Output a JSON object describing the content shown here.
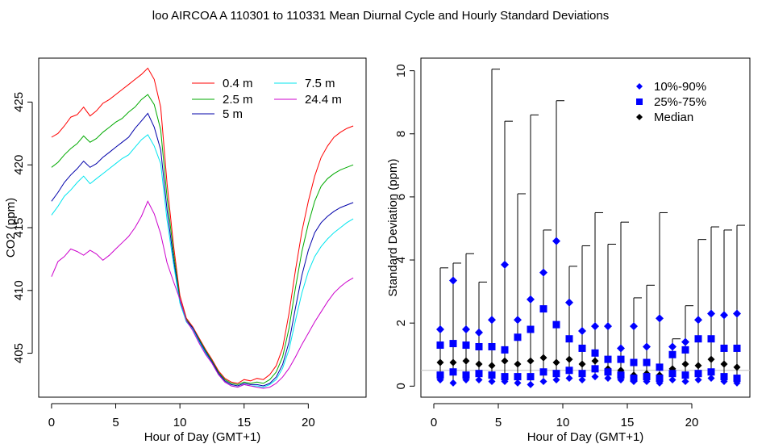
{
  "figure_title": "loo   AIRCOA A   110301 to 110331   Mean Diurnal Cycle and Hourly Standard Deviations",
  "chart_data": [
    {
      "type": "line",
      "xlabel": "Hour of Day (GMT+1)",
      "ylabel": "CO2 (ppm)",
      "xlim": [
        -1,
        24.5
      ],
      "ylim": [
        401.5,
        428.5
      ],
      "xticks": [
        0,
        5,
        10,
        15,
        20
      ],
      "yticks": [
        405,
        410,
        415,
        420,
        425
      ],
      "legend_position": "top-right",
      "series": [
        {
          "name": "0.4 m",
          "color": "#ff0000",
          "x": [
            0,
            0.5,
            1,
            1.5,
            2,
            2.5,
            3,
            3.5,
            4,
            4.5,
            5,
            5.5,
            6,
            6.5,
            7,
            7.5,
            8,
            8.5,
            9,
            9.5,
            10,
            10.5,
            11,
            11.5,
            12,
            12.5,
            13,
            13.5,
            14,
            14.5,
            15,
            15.5,
            16,
            16.5,
            17,
            17.5,
            18,
            18.5,
            19,
            19.5,
            20,
            20.5,
            21,
            21.5,
            22,
            22.5,
            23,
            23.5
          ],
          "y": [
            422.2,
            422.5,
            423.1,
            423.8,
            424.0,
            424.6,
            423.9,
            424.3,
            424.9,
            425.2,
            425.6,
            426.0,
            426.4,
            426.8,
            427.2,
            427.7,
            426.8,
            424.6,
            418.5,
            413.6,
            409.6,
            407.8,
            407.1,
            406.2,
            405.3,
            404.5,
            403.6,
            403.0,
            402.7,
            402.6,
            402.9,
            402.8,
            403.0,
            402.9,
            403.3,
            404.0,
            405.4,
            408.2,
            411.6,
            414.7,
            417.1,
            419.1,
            420.6,
            421.5,
            422.2,
            422.6,
            422.9,
            423.1
          ]
        },
        {
          "name": "2.5 m",
          "color": "#00aa00",
          "x": [
            0,
            0.5,
            1,
            1.5,
            2,
            2.5,
            3,
            3.5,
            4,
            4.5,
            5,
            5.5,
            6,
            6.5,
            7,
            7.5,
            8,
            8.5,
            9,
            9.5,
            10,
            10.5,
            11,
            11.5,
            12,
            12.5,
            13,
            13.5,
            14,
            14.5,
            15,
            15.5,
            16,
            16.5,
            17,
            17.5,
            18,
            18.5,
            19,
            19.5,
            20,
            20.5,
            21,
            21.5,
            22,
            22.5,
            23,
            23.5
          ],
          "y": [
            419.8,
            420.2,
            420.8,
            421.3,
            421.7,
            422.3,
            421.8,
            422.1,
            422.6,
            423.0,
            423.4,
            423.7,
            424.2,
            424.6,
            425.2,
            425.6,
            424.8,
            422.8,
            417.4,
            413.0,
            409.3,
            407.7,
            407.0,
            406.1,
            405.2,
            404.4,
            403.5,
            402.9,
            402.6,
            402.5,
            402.7,
            402.6,
            402.7,
            402.6,
            402.9,
            403.5,
            404.7,
            407.0,
            410.2,
            413.1,
            415.3,
            417.1,
            418.3,
            418.9,
            419.3,
            419.6,
            419.8,
            420.0
          ]
        },
        {
          "name": "5 m",
          "color": "#0000aa",
          "x": [
            0,
            0.5,
            1,
            1.5,
            2,
            2.5,
            3,
            3.5,
            4,
            4.5,
            5,
            5.5,
            6,
            6.5,
            7,
            7.5,
            8,
            8.5,
            9,
            9.5,
            10,
            10.5,
            11,
            11.5,
            12,
            12.5,
            13,
            13.5,
            14,
            14.5,
            15,
            15.5,
            16,
            16.5,
            17,
            17.5,
            18,
            18.5,
            19,
            19.5,
            20,
            20.5,
            21,
            21.5,
            22,
            22.5,
            23,
            23.5
          ],
          "y": [
            417.1,
            417.8,
            418.6,
            419.2,
            419.7,
            420.3,
            419.8,
            420.1,
            420.6,
            421.0,
            421.4,
            421.8,
            422.2,
            422.9,
            423.5,
            424.1,
            423.0,
            421.2,
            416.4,
            412.5,
            409.1,
            407.6,
            407.0,
            406.0,
            405.1,
            404.3,
            403.4,
            402.8,
            402.5,
            402.4,
            402.6,
            402.5,
            402.5,
            402.4,
            402.6,
            403.1,
            404.1,
            405.9,
            408.6,
            411.2,
            413.2,
            414.6,
            415.4,
            415.9,
            416.3,
            416.6,
            416.8,
            417.0
          ]
        },
        {
          "name": "7.5 m",
          "color": "#00e5ee",
          "x": [
            0,
            0.5,
            1,
            1.5,
            2,
            2.5,
            3,
            3.5,
            4,
            4.5,
            5,
            5.5,
            6,
            6.5,
            7,
            7.5,
            8,
            8.5,
            9,
            9.5,
            10,
            10.5,
            11,
            11.5,
            12,
            12.5,
            13,
            13.5,
            14,
            14.5,
            15,
            15.5,
            16,
            16.5,
            17,
            17.5,
            18,
            18.5,
            19,
            19.5,
            20,
            20.5,
            21,
            21.5,
            22,
            22.5,
            23,
            23.5
          ],
          "y": [
            416.0,
            416.7,
            417.5,
            418.0,
            418.6,
            419.1,
            418.5,
            418.9,
            419.3,
            419.7,
            420.1,
            420.5,
            420.8,
            421.4,
            422.0,
            422.4,
            421.5,
            420.1,
            415.6,
            412.1,
            409.0,
            407.5,
            406.9,
            405.9,
            405.0,
            404.2,
            403.3,
            402.7,
            402.4,
            402.3,
            402.5,
            402.4,
            402.4,
            402.3,
            402.5,
            402.9,
            403.8,
            405.3,
            407.6,
            409.8,
            411.5,
            412.7,
            413.5,
            414.1,
            414.6,
            415.0,
            415.4,
            415.7
          ]
        },
        {
          "name": "24.4 m",
          "color": "#cc00cc",
          "x": [
            0,
            0.5,
            1,
            1.5,
            2,
            2.5,
            3,
            3.5,
            4,
            4.5,
            5,
            5.5,
            6,
            6.5,
            7,
            7.5,
            8,
            8.5,
            9,
            9.5,
            10,
            10.5,
            11,
            11.5,
            12,
            12.5,
            13,
            13.5,
            14,
            14.5,
            15,
            15.5,
            16,
            16.5,
            17,
            17.5,
            18,
            18.5,
            19,
            19.5,
            20,
            20.5,
            21,
            21.5,
            22,
            22.5,
            23,
            23.5
          ],
          "y": [
            411.1,
            412.3,
            412.7,
            413.3,
            413.1,
            412.8,
            413.2,
            412.9,
            412.4,
            412.8,
            413.3,
            413.8,
            414.3,
            415.0,
            415.9,
            417.1,
            416.1,
            414.5,
            412.2,
            410.7,
            409.3,
            407.6,
            406.8,
            405.8,
            404.9,
            404.2,
            403.3,
            402.7,
            402.4,
            402.3,
            402.5,
            402.4,
            402.3,
            402.2,
            402.3,
            402.6,
            403.1,
            403.8,
            404.7,
            405.7,
            406.6,
            407.5,
            408.3,
            409.1,
            409.8,
            410.3,
            410.7,
            411.0
          ]
        }
      ]
    },
    {
      "type": "scatter",
      "xlabel": "Hour of Day (GMT+1)",
      "ylabel": "Standard Deviation (ppm)",
      "xlim": [
        -1,
        24.5
      ],
      "ylim": [
        -0.35,
        10.4
      ],
      "xticks": [
        0,
        5,
        10,
        15,
        20
      ],
      "yticks": [
        0,
        2,
        4,
        6,
        8,
        10
      ],
      "reference_line_y": 0.5,
      "legend_position": "top-right",
      "legend": [
        {
          "label": "10%-90%",
          "marker": "diamond",
          "color": "#0000ff"
        },
        {
          "label": "25%-75%",
          "marker": "square",
          "color": "#0000ff"
        },
        {
          "label": "Median",
          "marker": "diamond",
          "color": "#000000"
        }
      ],
      "hours": [
        0.5,
        1.5,
        2.5,
        3.5,
        4.5,
        5.5,
        6.5,
        7.5,
        8.5,
        9.5,
        10.5,
        11.5,
        12.5,
        13.5,
        14.5,
        15.5,
        16.5,
        17.5,
        18.5,
        19.5,
        20.5,
        21.5,
        22.5,
        23.5
      ],
      "max": [
        3.75,
        3.9,
        4.2,
        3.3,
        10.05,
        8.4,
        6.1,
        8.6,
        4.95,
        9.05,
        3.8,
        4.45,
        5.5,
        4.5,
        5.2,
        2.8,
        3.2,
        5.5,
        1.5,
        2.55,
        4.65,
        5.05,
        4.95,
        5.1
      ],
      "p90": [
        1.8,
        3.35,
        1.8,
        1.7,
        2.1,
        3.85,
        2.1,
        2.75,
        3.6,
        4.6,
        2.65,
        1.75,
        1.9,
        1.9,
        1.2,
        1.9,
        1.25,
        2.15,
        1.25,
        1.4,
        2.1,
        2.3,
        2.25,
        2.3
      ],
      "p75": [
        1.3,
        1.35,
        1.3,
        1.25,
        1.25,
        1.15,
        1.55,
        1.8,
        2.45,
        1.95,
        1.5,
        1.2,
        1.05,
        0.85,
        0.85,
        0.75,
        0.75,
        0.6,
        1.0,
        1.15,
        1.5,
        1.5,
        1.2,
        1.2
      ],
      "median": [
        0.75,
        0.75,
        0.8,
        0.7,
        0.65,
        0.8,
        0.7,
        0.8,
        0.9,
        0.75,
        0.85,
        0.7,
        0.8,
        0.55,
        0.5,
        0.35,
        0.4,
        0.35,
        0.55,
        0.7,
        0.65,
        0.85,
        0.7,
        0.6
      ],
      "p25": [
        0.35,
        0.45,
        0.35,
        0.4,
        0.35,
        0.3,
        0.3,
        0.3,
        0.45,
        0.4,
        0.5,
        0.4,
        0.55,
        0.45,
        0.35,
        0.25,
        0.3,
        0.25,
        0.4,
        0.35,
        0.4,
        0.45,
        0.3,
        0.25
      ],
      "p10": [
        0.2,
        0.1,
        0.2,
        0.2,
        0.15,
        0.15,
        0.1,
        0.05,
        0.15,
        0.2,
        0.25,
        0.2,
        0.3,
        0.25,
        0.2,
        0.15,
        0.15,
        0.1,
        0.2,
        0.15,
        0.2,
        0.25,
        0.15,
        0.1
      ]
    }
  ]
}
